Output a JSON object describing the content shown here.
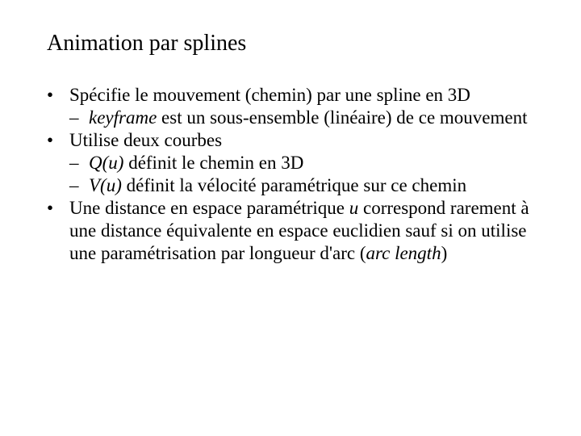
{
  "title": "Animation par splines",
  "b1": "Spécifie le mouvement (chemin) par une spline en 3D",
  "b1s1_italic": "keyframe",
  "b1s1_rest": " est un sous-ensemble (linéaire) de ce mouvement",
  "b2": "Utilise deux courbes",
  "b2s1_italic": "Q(u)",
  "b2s1_rest": " définit le chemin en 3D",
  "b2s2_italic": "V(u)",
  "b2s2_rest": " définit la vélocité paramétrique sur ce chemin",
  "b3_a": "Une distance en espace paramétrique ",
  "b3_u": "u",
  "b3_b": " correspond rarement à une distance équivalente en espace euclidien sauf si on utilise une paramétrisation par longueur d'arc (",
  "b3_arc": "arc length",
  "b3_c": ")",
  "marks": {
    "bullet": "•",
    "dash": "–"
  },
  "style": {
    "title_fontsize": 28,
    "body_fontsize": 23,
    "line_height": 1.22,
    "text_color": "#000000",
    "background_color": "#ffffff",
    "font_family": "Times New Roman"
  }
}
